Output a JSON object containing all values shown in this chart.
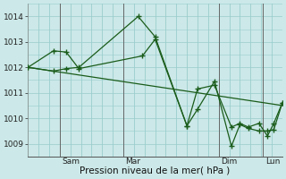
{
  "background_color": "#cce8e8",
  "grid_color": "#99cccc",
  "line_color": "#1a5c1a",
  "marker_color": "#1a5c1a",
  "xlabel": "Pression niveau de la mer( hPa )",
  "ylim": [
    1008.5,
    1014.5
  ],
  "yticks": [
    1009,
    1010,
    1011,
    1012,
    1013,
    1014
  ],
  "day_labels": [
    "Sam",
    "Mar",
    "Dim",
    "Lun"
  ],
  "xlim": [
    0,
    120
  ],
  "series1_x": [
    0,
    12,
    18,
    24,
    54,
    60,
    75,
    80,
    88,
    96,
    100,
    104,
    109,
    113,
    116,
    120
  ],
  "series1_y": [
    1012.0,
    1012.65,
    1012.6,
    1011.95,
    1012.45,
    1013.1,
    1009.7,
    1011.15,
    1011.3,
    1009.65,
    1009.8,
    1009.65,
    1009.8,
    1009.3,
    1009.8,
    1010.6
  ],
  "series2_x": [
    0,
    12,
    18,
    24,
    52,
    60,
    75,
    80,
    88,
    96,
    100,
    104,
    109,
    113,
    116,
    120
  ],
  "series2_y": [
    1012.0,
    1011.85,
    1011.95,
    1012.0,
    1014.0,
    1013.2,
    1009.7,
    1010.35,
    1011.45,
    1008.9,
    1009.75,
    1009.6,
    1009.5,
    1009.5,
    1009.55,
    1010.6
  ],
  "trend_x": [
    0,
    120
  ],
  "trend_y": [
    1012.0,
    1010.5
  ],
  "vline_x": [
    15,
    45,
    90,
    111
  ]
}
